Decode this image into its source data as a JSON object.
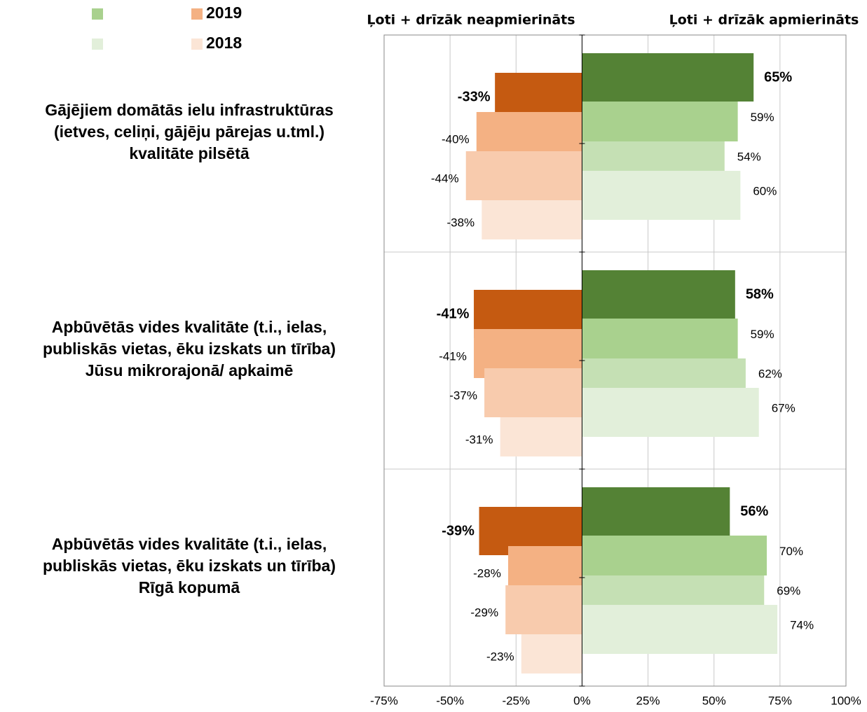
{
  "chart_data": {
    "type": "diverging-bar",
    "headers": [
      "Ļoti + drīzāk neapmierināts",
      "Ļoti + drīzāk apmierināts"
    ],
    "categories": [
      [
        "Gājējiem domātās ielu infrastruktūras",
        "(ietves, celiņi, gājēju pārejas u.tml.)",
        "kvalitāte pilsētā"
      ],
      [
        "Apbūvētās vides kvalitāte (t.i., ielas,",
        "publiskās vietas, ēku izskats un tīrība)",
        "Jūsu mikrorajonā/ apkaimē"
      ],
      [
        "Apbūvētās vides kvalitāte (t.i., ielas,",
        "publiskās vietas, ēku izskats un tīrība)",
        "Rīgā kopumā"
      ]
    ],
    "series": [
      {
        "color": "#548235",
        "values": [
          65,
          58,
          56
        ],
        "value_labels": [
          "65%",
          "58%",
          "56%"
        ]
      },
      {
        "color": "#a9d18e",
        "values": [
          59,
          59,
          70
        ],
        "value_labels": [
          "59%",
          "59%",
          "70%"
        ]
      },
      {
        "color": "#c5e0b4",
        "values": [
          54,
          62,
          69
        ],
        "value_labels": [
          "54%",
          "62%",
          "69%"
        ]
      },
      {
        "color": "#e2efda",
        "values": [
          60,
          67,
          74
        ],
        "value_labels": [
          "60%",
          "67%",
          "74%"
        ]
      },
      {
        "color": "#c55a11",
        "values": [
          -33,
          -41,
          -39
        ],
        "value_labels": [
          "-33%",
          "-41%",
          "-39%"
        ]
      },
      {
        "name": "2019",
        "color": "#f4b183",
        "values": [
          -40,
          -41,
          -28
        ],
        "value_labels": [
          "-40%",
          "-41%",
          "-28%"
        ]
      },
      {
        "color": "#f8cbad",
        "values": [
          -44,
          -37,
          -29
        ],
        "value_labels": [
          "-44%",
          "-37%",
          "-29%"
        ]
      },
      {
        "name": "2018",
        "color": "#fbe5d6",
        "values": [
          -38,
          -31,
          -23
        ],
        "value_labels": [
          "-38%",
          "-31%",
          "-23%"
        ]
      }
    ],
    "xlim": [
      -75,
      100
    ],
    "xticks": [
      {
        "value": -75,
        "label": "-75%"
      },
      {
        "value": -50,
        "label": "-50%"
      },
      {
        "value": -25,
        "label": "-25%"
      },
      {
        "value": 0,
        "label": "0%"
      },
      {
        "value": 25,
        "label": "25%"
      },
      {
        "value": 50,
        "label": "50%"
      },
      {
        "value": 75,
        "label": "75%"
      },
      {
        "value": 100,
        "label": "100%"
      }
    ],
    "grid": true
  }
}
